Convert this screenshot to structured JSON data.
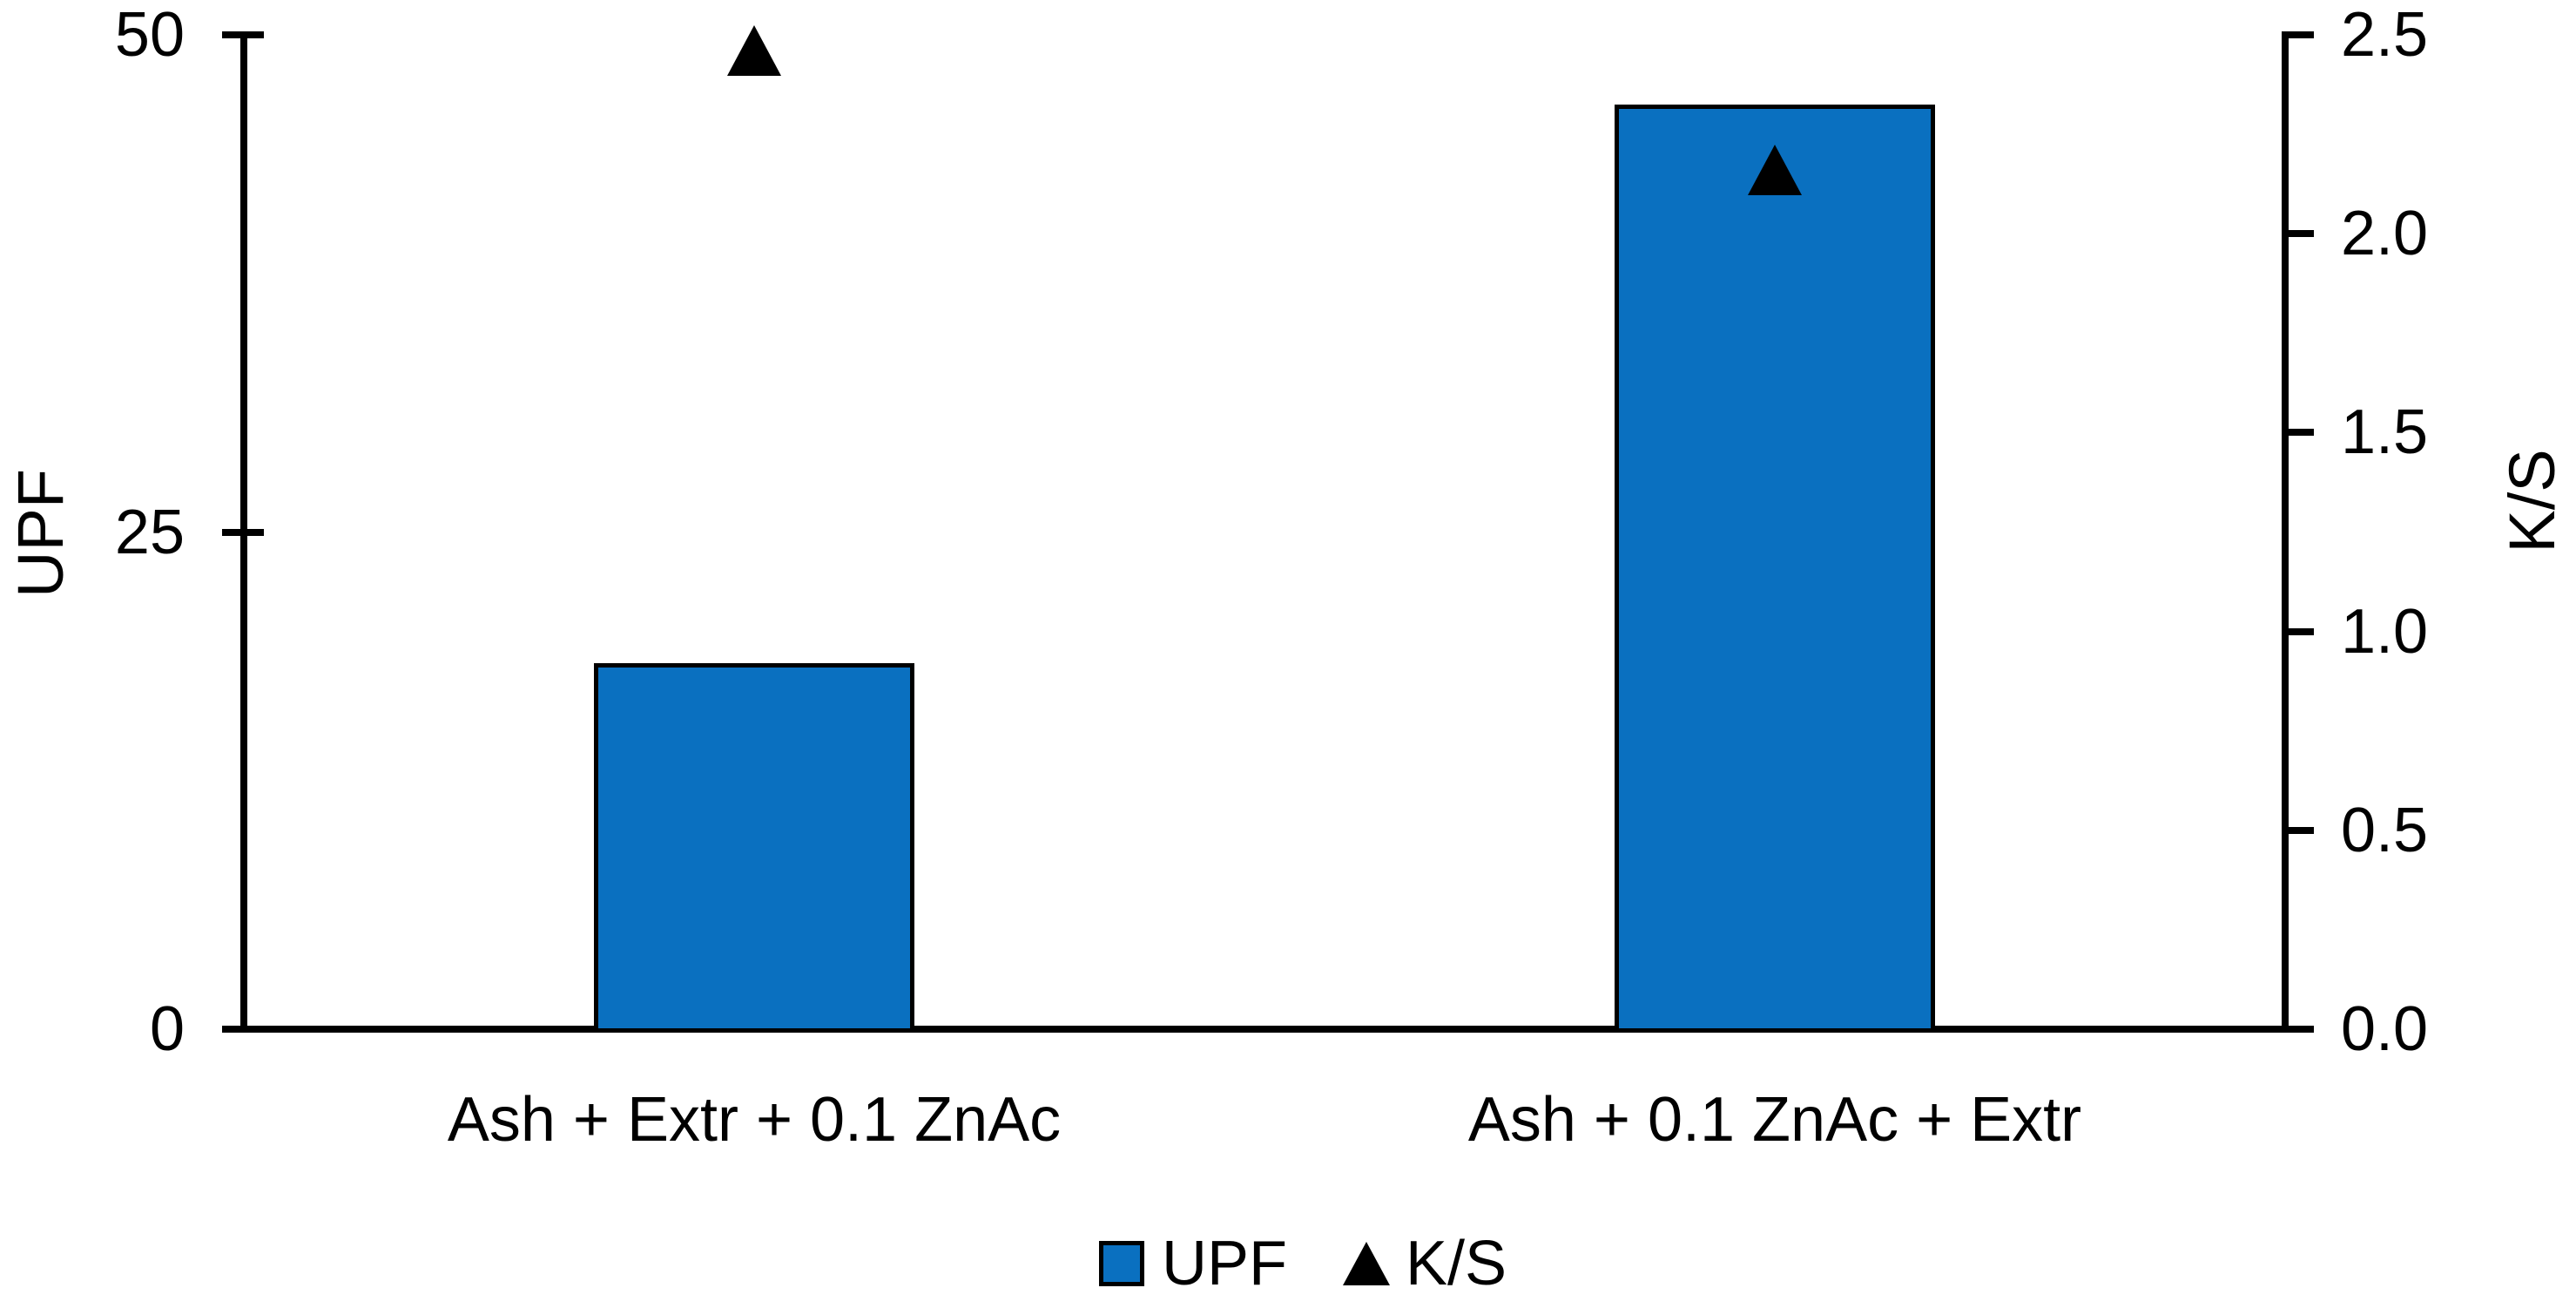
{
  "chart_data": {
    "type": "bar",
    "subtype": "combo-bar-scatter-dual-axis",
    "categories": [
      "Ash + Extr + 0.1 ZnAc",
      "Ash + 0.1 ZnAc + Extr"
    ],
    "series": [
      {
        "name": "UPF",
        "type": "bar",
        "axis": "left",
        "values": [
          18.4,
          46.5
        ]
      },
      {
        "name": "K/S",
        "type": "scatter",
        "marker": "triangle-up",
        "axis": "right",
        "values": [
          2.46,
          2.16
        ]
      }
    ],
    "left_axis": {
      "title": "UPF",
      "min": 0,
      "max": 50,
      "ticks": [
        "0",
        "25",
        "50"
      ]
    },
    "right_axis": {
      "title": "K/S",
      "min": 0,
      "max": 2.5,
      "ticks": [
        "0.0",
        "0.5",
        "1.0",
        "1.5",
        "2.0",
        "2.5"
      ]
    },
    "legend": [
      {
        "label": "UPF",
        "marker": "square"
      },
      {
        "label": "K/S",
        "marker": "triangle-up"
      }
    ],
    "grid": false,
    "legend_position": "bottom"
  },
  "colors": {
    "bar_fill": "#0a70c0",
    "marker": "#000000",
    "axis": "#000000",
    "text": "#000000",
    "background": "#ffffff"
  }
}
